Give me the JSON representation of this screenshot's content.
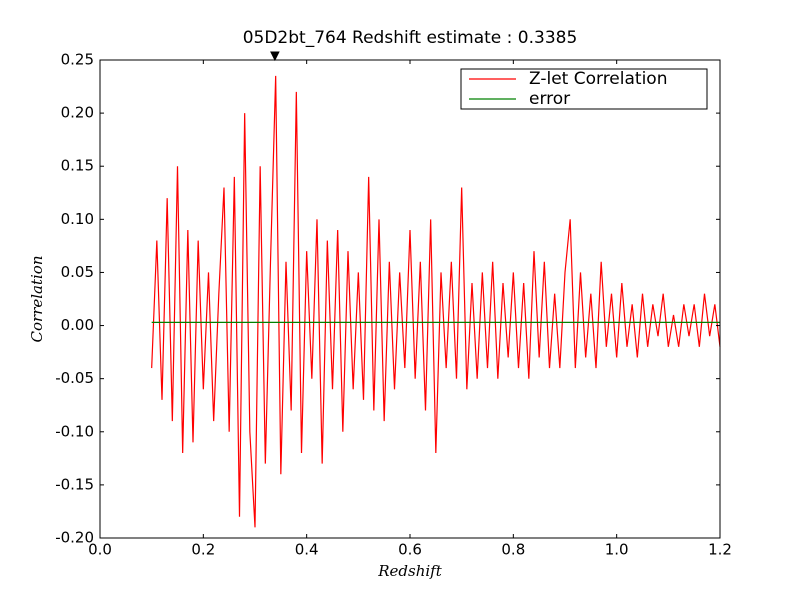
{
  "chart_data": {
    "type": "line",
    "title": "05D2bt_764 Redshift estimate : 0.3385",
    "x_label": "Redshift",
    "y_label": "Correlation",
    "marker_x": 0.3385,
    "series": [
      {
        "name": "Z-let Correlation",
        "color": "#ff0000",
        "x": [
          0.1,
          0.11,
          0.12,
          0.13,
          0.14,
          0.15,
          0.16,
          0.17,
          0.18,
          0.19,
          0.2,
          0.21,
          0.22,
          0.23,
          0.24,
          0.25,
          0.26,
          0.27,
          0.28,
          0.29,
          0.3,
          0.31,
          0.32,
          0.33,
          0.34,
          0.35,
          0.36,
          0.37,
          0.38,
          0.39,
          0.4,
          0.41,
          0.42,
          0.43,
          0.44,
          0.45,
          0.46,
          0.47,
          0.48,
          0.49,
          0.5,
          0.51,
          0.52,
          0.53,
          0.54,
          0.55,
          0.56,
          0.57,
          0.58,
          0.59,
          0.6,
          0.61,
          0.62,
          0.63,
          0.64,
          0.65,
          0.66,
          0.67,
          0.68,
          0.69,
          0.7,
          0.71,
          0.72,
          0.73,
          0.74,
          0.75,
          0.76,
          0.77,
          0.78,
          0.79,
          0.8,
          0.81,
          0.82,
          0.83,
          0.84,
          0.85,
          0.86,
          0.87,
          0.88,
          0.89,
          0.9,
          0.91,
          0.92,
          0.93,
          0.94,
          0.95,
          0.96,
          0.97,
          0.98,
          0.99,
          1.0,
          1.01,
          1.02,
          1.03,
          1.04,
          1.05,
          1.06,
          1.07,
          1.08,
          1.09,
          1.1,
          1.11,
          1.12,
          1.13,
          1.14,
          1.15,
          1.16,
          1.17,
          1.18,
          1.19,
          1.2
        ],
        "values": [
          -0.04,
          0.08,
          -0.07,
          0.12,
          -0.09,
          0.15,
          -0.12,
          0.09,
          -0.11,
          0.08,
          -0.06,
          0.05,
          -0.09,
          0.03,
          0.13,
          -0.1,
          0.14,
          -0.18,
          0.2,
          -0.1,
          -0.19,
          0.15,
          -0.13,
          0.06,
          0.235,
          -0.14,
          0.06,
          -0.08,
          0.22,
          -0.12,
          0.07,
          -0.05,
          0.1,
          -0.13,
          0.08,
          -0.06,
          0.09,
          -0.1,
          0.07,
          -0.06,
          0.05,
          -0.07,
          0.14,
          -0.08,
          0.1,
          -0.09,
          0.06,
          -0.06,
          0.05,
          -0.04,
          0.09,
          -0.05,
          0.06,
          -0.08,
          0.1,
          -0.12,
          0.05,
          -0.04,
          0.06,
          -0.05,
          0.13,
          -0.06,
          0.04,
          -0.05,
          0.05,
          -0.04,
          0.06,
          -0.05,
          0.04,
          -0.03,
          0.05,
          -0.04,
          0.04,
          -0.05,
          0.07,
          -0.03,
          0.06,
          -0.04,
          0.03,
          -0.04,
          0.05,
          0.1,
          -0.04,
          0.05,
          -0.03,
          0.03,
          -0.04,
          0.06,
          -0.02,
          0.03,
          -0.03,
          0.04,
          -0.02,
          0.02,
          -0.03,
          0.03,
          -0.02,
          0.02,
          -0.01,
          0.03,
          -0.02,
          0.01,
          -0.02,
          0.02,
          -0.01,
          0.02,
          -0.02,
          0.03,
          -0.01,
          0.02,
          -0.02
        ]
      },
      {
        "name": "error",
        "color": "#008000",
        "x": [
          0.1,
          1.2
        ],
        "values": [
          0.003,
          0.003
        ]
      }
    ],
    "xlim": [
      0,
      1.2
    ],
    "xticks": [
      {
        "value": 0,
        "label": "0.0"
      },
      0.2,
      0.4,
      0.6,
      0.8,
      {
        "value": 1,
        "label": "1.0"
      },
      1.2
    ],
    "ylim": [
      -0.2,
      0.25
    ],
    "yticks": [
      {
        "value": -0.2,
        "label": "-0.20"
      },
      -0.15,
      {
        "value": -0.1,
        "label": "-0.10"
      },
      -0.05,
      {
        "value": 0,
        "label": "0.00"
      },
      0.05,
      {
        "value": 0.1,
        "label": "0.10"
      },
      0.15,
      {
        "value": 0.2,
        "label": "0.20"
      },
      0.25
    ],
    "legend": "upper right"
  }
}
